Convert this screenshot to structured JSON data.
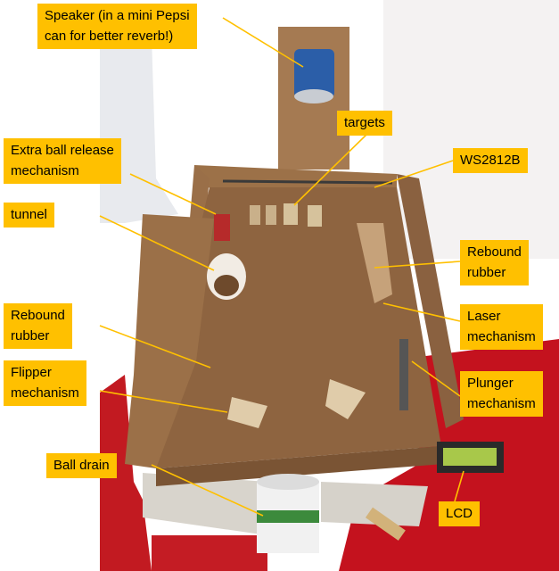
{
  "callouts": {
    "speaker": {
      "line1": "Speaker (in a mini Pepsi",
      "line2": "can for better reverb!)"
    },
    "targets": {
      "text": "targets"
    },
    "extra_ball": {
      "line1": "Extra ball release",
      "line2": "mechanism"
    },
    "ws2812b": {
      "text": "WS2812B"
    },
    "tunnel": {
      "text": "tunnel"
    },
    "rebound_right": {
      "line1": "Rebound",
      "line2": "rubber"
    },
    "rebound_left": {
      "line1": "Rebound",
      "line2": "rubber"
    },
    "laser": {
      "line1": "Laser",
      "line2": "mechanism"
    },
    "flipper": {
      "line1": "Flipper",
      "line2": "mechanism"
    },
    "plunger": {
      "line1": "Plunger",
      "line2": "mechanism"
    },
    "ball_drain": {
      "text": "Ball drain"
    },
    "lcd": {
      "text": "LCD"
    }
  },
  "colors": {
    "callout_fill": "#ffc000",
    "leader_line": "#ffc000",
    "callout_text": "#000000"
  }
}
